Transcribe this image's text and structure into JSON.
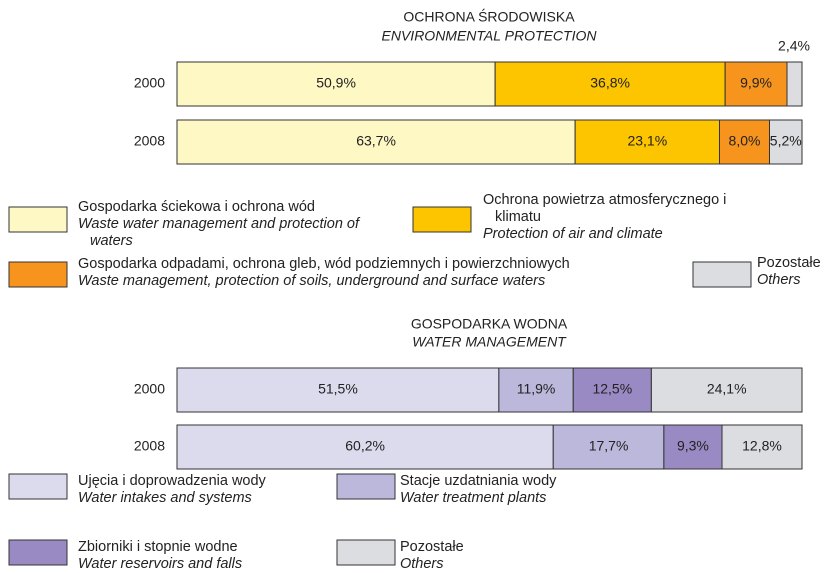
{
  "chart_data": [
    {
      "type": "bar",
      "orientation": "horizontal",
      "stacked": true,
      "title": "OCHRONA ŚRODOWISKA",
      "subtitle": "ENVIRONMENTAL PROTECTION",
      "categories": [
        "2000",
        "2008"
      ],
      "xlim": [
        0,
        100
      ],
      "series": [
        {
          "name": "Gospodarka ściekowa i ochrona wód",
          "name_en": "Waste water management and protection of waters",
          "color": "#fdf8c4",
          "values": [
            50.9,
            63.7
          ],
          "value_labels": [
            "50,9%",
            "63,7%"
          ]
        },
        {
          "name": "Ochrona powietrza atmosferycznego i klimatu",
          "name_en": "Protection of air and climate",
          "color": "#fdc400",
          "values": [
            36.8,
            23.1
          ],
          "value_labels": [
            "36,8%",
            "23,1%"
          ]
        },
        {
          "name": "Gospodarka odpadami, ochrona gleb, wód podziemnych i powierzchniowych",
          "name_en": "Waste management, protection of soils, underground and surface waters",
          "color": "#f7941d",
          "values": [
            9.9,
            8.0
          ],
          "value_labels": [
            "9,9%",
            "8,0%"
          ]
        },
        {
          "name": "Pozostałe",
          "name_en": "Others",
          "color": "#dcdde0",
          "values": [
            2.4,
            5.2
          ],
          "value_labels": [
            "2,4%",
            "5,2%"
          ]
        }
      ]
    },
    {
      "type": "bar",
      "orientation": "horizontal",
      "stacked": true,
      "title": "GOSPODARKA WODNA",
      "subtitle": "WATER MANAGEMENT",
      "categories": [
        "2000",
        "2008"
      ],
      "xlim": [
        0,
        100
      ],
      "series": [
        {
          "name": "Ujęcia i doprowadzenia wody",
          "name_en": "Water intakes and systems",
          "color": "#dcdaed",
          "values": [
            51.5,
            60.2
          ],
          "value_labels": [
            "51,5%",
            "60,2%"
          ]
        },
        {
          "name": "Stacje uzdatniania wody",
          "name_en": "Water treatment plants",
          "color": "#bcb8dc",
          "values": [
            11.9,
            17.7
          ],
          "value_labels": [
            "11,9%",
            "17,7%"
          ]
        },
        {
          "name": "Zbiorniki i stopnie wodne",
          "name_en": "Water reservoirs and falls",
          "color": "#9a8ac3",
          "values": [
            12.5,
            9.3
          ],
          "value_labels": [
            "12,5%",
            "9,3%"
          ]
        },
        {
          "name": "Pozostałe",
          "name_en": "Others",
          "color": "#dcdde0",
          "values": [
            24.1,
            12.8
          ],
          "value_labels": [
            "24,1%",
            "12,8%"
          ]
        }
      ]
    }
  ]
}
